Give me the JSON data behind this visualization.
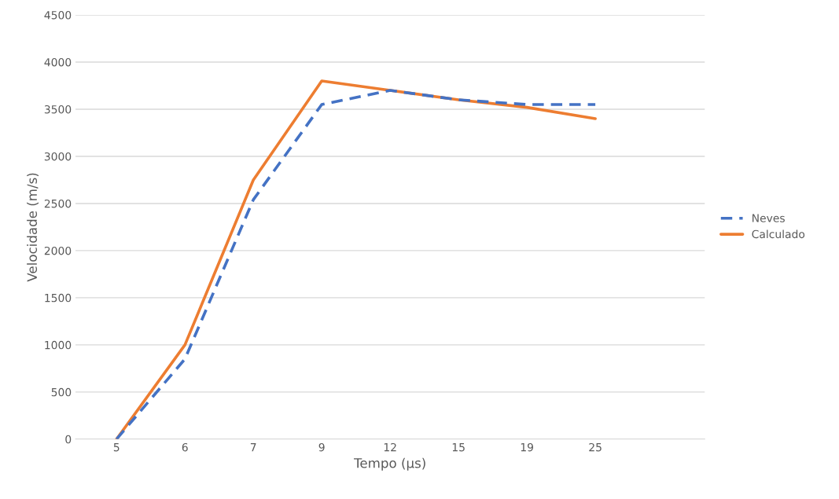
{
  "chart_data": {
    "type": "line",
    "xlabel": "Tempo (µs)",
    "ylabel": "Velocidade (m/s)",
    "categories": [
      "5",
      "6",
      "7",
      "9",
      "12",
      "15",
      "19",
      "25"
    ],
    "series": [
      {
        "name": "Neves",
        "color": "#4472c4",
        "line_style": "dashed",
        "values": [
          0,
          850,
          2540,
          3550,
          3700,
          3600,
          3550,
          3550
        ]
      },
      {
        "name": "Calculado",
        "color": "#ed7d31",
        "line_style": "solid",
        "values": [
          0,
          1000,
          2750,
          3800,
          3700,
          3600,
          3520,
          3400
        ]
      }
    ],
    "ylim": [
      0,
      4500
    ],
    "yticks": [
      0,
      500,
      1000,
      1500,
      2000,
      2500,
      3000,
      3500,
      4000,
      4500
    ],
    "grid": "y",
    "legend": "right",
    "marker": "none"
  }
}
